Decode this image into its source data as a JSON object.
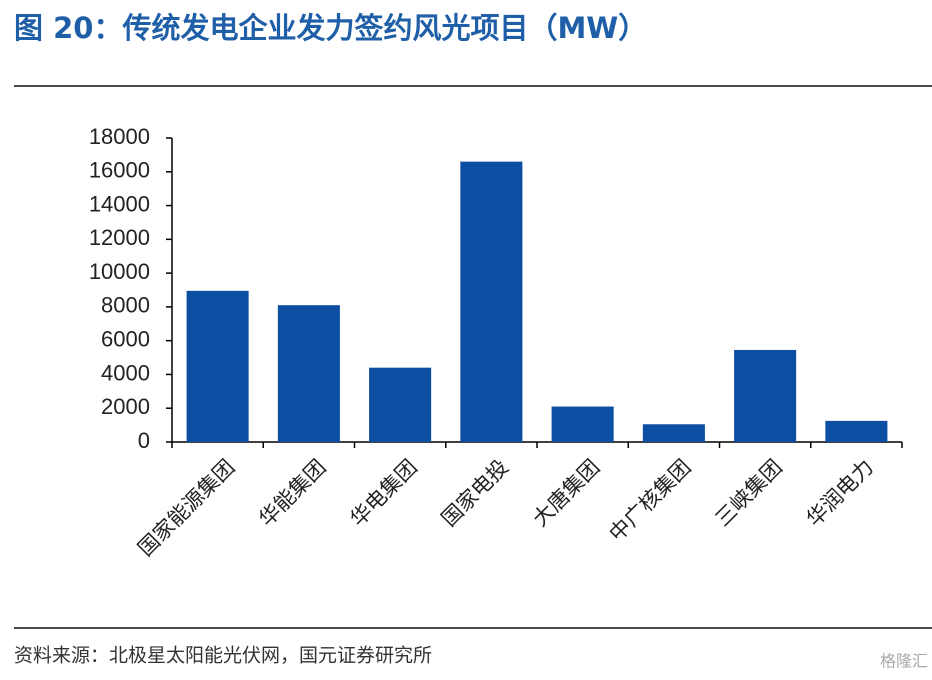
{
  "chart_data": {
    "type": "bar",
    "title": "图 20：传统发电企业发力签约风光项目（MW）",
    "categories": [
      "国家能源集团",
      "华能集团",
      "华电集团",
      "国家电投",
      "大唐集团",
      "中广核集团",
      "三峡集团",
      "华润电力"
    ],
    "values": [
      8950,
      8100,
      4400,
      16600,
      2100,
      1050,
      5450,
      1250
    ],
    "color": "#0b4ea2",
    "ylim": [
      0,
      18000
    ],
    "yticks": [
      0,
      2000,
      4000,
      6000,
      8000,
      10000,
      12000,
      14000,
      16000,
      18000
    ],
    "grid": false,
    "source": "资料来源：北极星太阳能光伏网，国元证券研究所",
    "watermark": "格隆汇"
  }
}
